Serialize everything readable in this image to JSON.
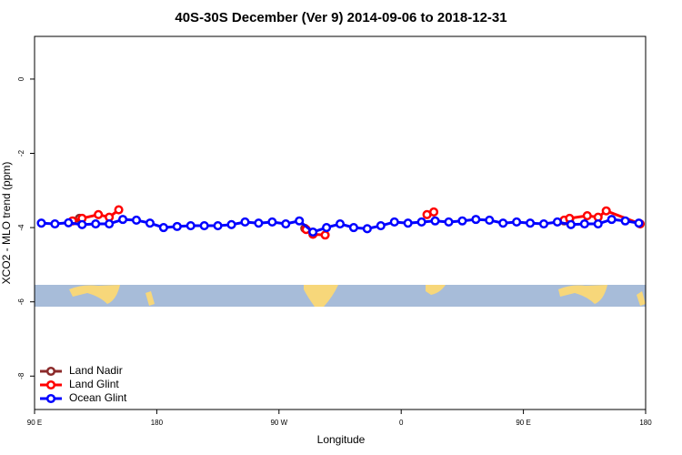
{
  "chart_data": {
    "type": "line",
    "title": "40S-30S December (Ver 9)   2014-09-06 to 2018-12-31",
    "x_label": "Longitude",
    "y_label": "XCO2 - MLO trend (ppm)",
    "xlim": [
      90,
      540
    ],
    "ylim": [
      -8.9,
      1.15
    ],
    "xticks": [
      {
        "value": 90,
        "label": "90 E"
      },
      180,
      {
        "value": 270,
        "label": "90 W"
      },
      {
        "value": 360,
        "label": "0"
      },
      {
        "value": 450,
        "label": "90 E"
      },
      {
        "value": 540,
        "label": "180"
      }
    ],
    "yticks": [
      -8,
      -6,
      -4,
      -2,
      0
    ],
    "legend": "bottom-left",
    "series": [
      {
        "name": "Land Nadir",
        "color": "#8b2a2a",
        "x": [
          123,
          200,
          289,
          400,
          480,
          484
        ],
        "values": [
          -3.75,
          null,
          -4.02,
          null,
          -3.82,
          -3.78
        ]
      },
      {
        "name": "Land Glint",
        "color": "#ff0000",
        "x": [
          118,
          125,
          137,
          145,
          152,
          220,
          290,
          295,
          304,
          340,
          379,
          384,
          430,
          480,
          484,
          497,
          505,
          511,
          536
        ],
        "values": [
          -3.82,
          -3.75,
          -3.65,
          -3.72,
          -3.52,
          null,
          -4.05,
          -4.18,
          -4.2,
          null,
          -3.65,
          -3.58,
          null,
          -3.8,
          -3.75,
          -3.68,
          -3.72,
          -3.55,
          -3.9
        ]
      },
      {
        "name": "Ocean Glint",
        "color": "#0000ff",
        "x": [
          95,
          105,
          115,
          125,
          135,
          145,
          155,
          165,
          175,
          185,
          195,
          205,
          215,
          225,
          235,
          245,
          255,
          265,
          275,
          285,
          295,
          305,
          315,
          325,
          335,
          345,
          355,
          365,
          375,
          385,
          395,
          405,
          415,
          425,
          435,
          445,
          455,
          465,
          475,
          485,
          495,
          505,
          515,
          525,
          535
        ],
        "values": [
          -3.88,
          -3.9,
          -3.87,
          -3.92,
          -3.9,
          -3.9,
          -3.78,
          -3.8,
          -3.88,
          -4.0,
          -3.97,
          -3.95,
          -3.95,
          -3.95,
          -3.92,
          -3.85,
          -3.88,
          -3.85,
          -3.9,
          -3.82,
          -4.12,
          -4.0,
          -3.9,
          -4.0,
          -4.03,
          -3.95,
          -3.85,
          -3.88,
          -3.85,
          -3.82,
          -3.85,
          -3.82,
          -3.78,
          -3.8,
          -3.88,
          -3.85,
          -3.88,
          -3.9,
          -3.85,
          -3.92,
          -3.9,
          -3.9,
          -3.78,
          -3.82,
          -3.88
        ]
      }
    ]
  }
}
